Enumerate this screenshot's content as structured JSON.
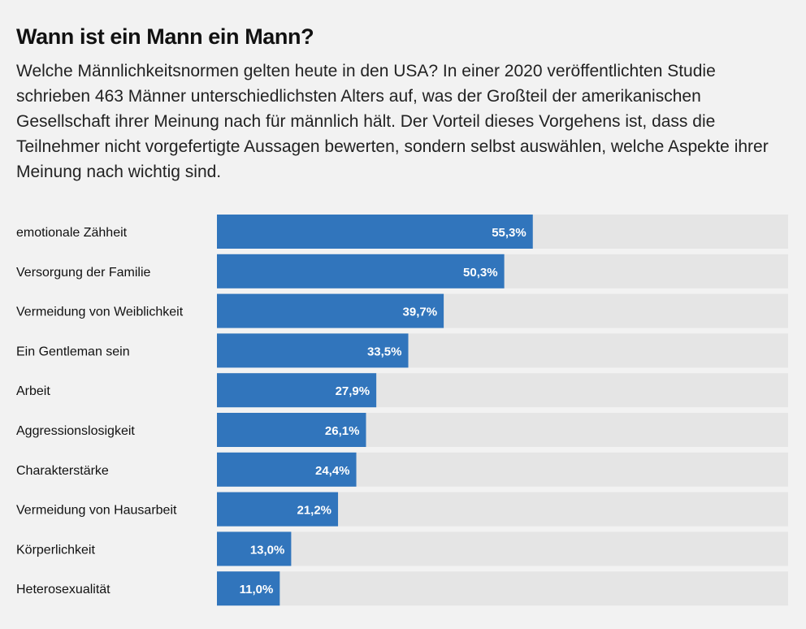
{
  "header": {
    "title": "Wann ist ein Mann ein Mann?",
    "subtitle": "Welche Männlichkeitsnormen gelten heute in den USA? In einer 2020 veröffentlichten Studie schrieben 463 Männer unterschiedlichsten Alters auf, was der Großteil der amerikanischen Gesellschaft ihrer Meinung nach für männlich hält. Der Vorteil dieses Vorgehens ist, dass die Teilnehmer nicht vorgefertigte Aussagen bewerten, sondern selbst auswählen, welche Aspekte ihrer Meinung nach wichtig sind."
  },
  "colors": {
    "bar": "#3175bc",
    "track": "#e5e5e5",
    "background": "#f2f2f2",
    "value_text": "#ffffff"
  },
  "chart_data": {
    "type": "bar",
    "orientation": "horizontal",
    "title": "Wann ist ein Mann ein Mann?",
    "xlabel": "",
    "ylabel": "",
    "xlim": [
      0,
      100
    ],
    "unit": "%",
    "grid": false,
    "legend": "none",
    "categories": [
      "emotionale Zähheit",
      "Versorgung der Familie",
      "Vermeidung von Weiblichkeit",
      "Ein Gentleman sein",
      "Arbeit",
      "Aggressionslosigkeit",
      "Charakterstärke",
      "Vermeidung von Hausarbeit",
      "Körperlichkeit",
      "Heterosexualität"
    ],
    "values": [
      55.3,
      50.3,
      39.7,
      33.5,
      27.9,
      26.1,
      24.4,
      21.2,
      13.0,
      11.0
    ],
    "value_labels": [
      "55,3%",
      "50,3%",
      "39,7%",
      "33,5%",
      "27,9%",
      "26,1%",
      "24,4%",
      "21,2%",
      "13,0%",
      "11,0%"
    ]
  }
}
